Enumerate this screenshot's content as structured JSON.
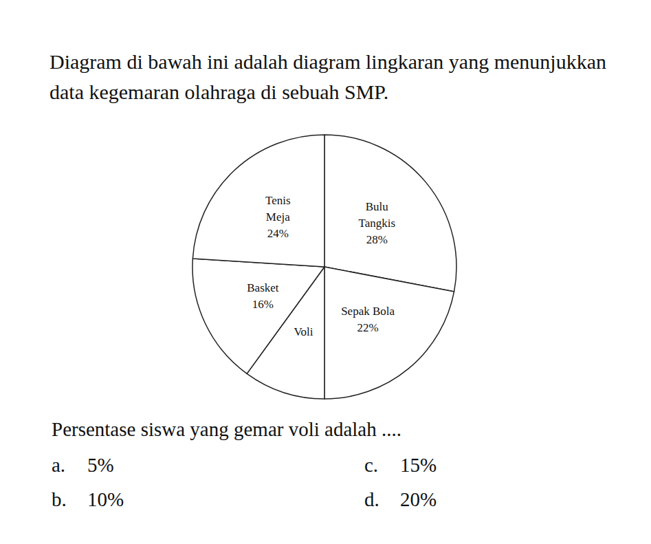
{
  "question": {
    "text": "Diagram di bawah ini adalah diagram lingkaran yang menunjukkan data kegemaran olahraga di sebuah SMP."
  },
  "chart_data": {
    "type": "pie",
    "categories": [
      "Bulu Tangkis",
      "Sepak Bola",
      "Voli",
      "Basket",
      "Tenis Meja"
    ],
    "values": [
      28,
      22,
      10,
      16,
      24
    ],
    "value_labels": [
      "28%",
      "22%",
      null,
      "16%",
      "24%"
    ],
    "color": "#ffffff",
    "data_labels": true
  },
  "prompt": "Persentase siswa yang gemar voli adalah ....",
  "options": [
    {
      "letter": "a.",
      "text": "5%"
    },
    {
      "letter": "b.",
      "text": "10%"
    },
    {
      "letter": "c.",
      "text": "15%"
    },
    {
      "letter": "d.",
      "text": "20%"
    }
  ]
}
